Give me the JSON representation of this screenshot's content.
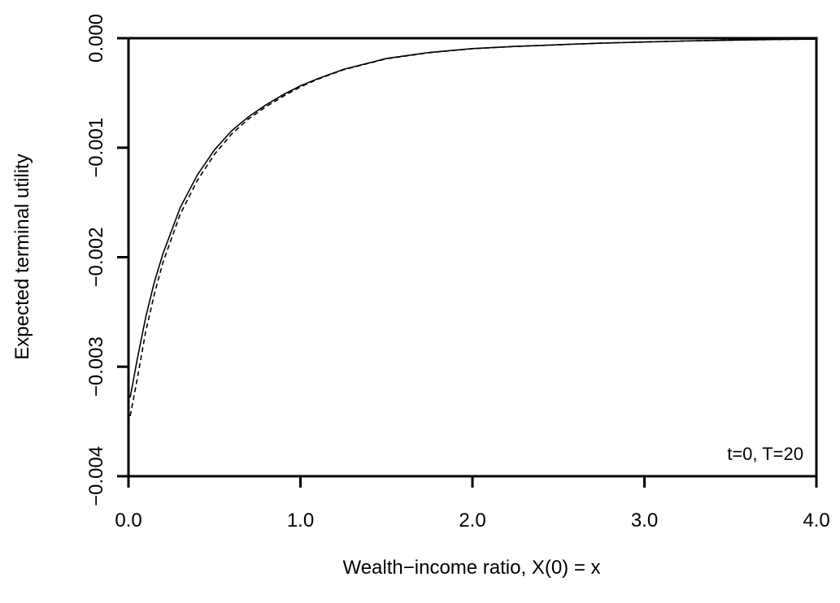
{
  "chart_data": {
    "type": "line",
    "title": "",
    "xlabel": "Wealth−income ratio, X(0) = x",
    "ylabel": "Expected terminal utility",
    "xlim": [
      0,
      4
    ],
    "ylim": [
      -0.004,
      0
    ],
    "x_ticks": [
      0,
      1,
      2,
      3,
      4
    ],
    "x_tick_labels": [
      "0.0",
      "1.0",
      "2.0",
      "3.0",
      "4.0"
    ],
    "y_ticks": [
      -0.004,
      -0.003,
      -0.002,
      -0.001,
      0
    ],
    "y_tick_labels": [
      "−0.004",
      "−0.003",
      "−0.002",
      "−0.001",
      "0.000"
    ],
    "grid": false,
    "annotation": "t=0, T=20",
    "series": [
      {
        "style": "solid",
        "x": [
          0.01,
          0.05,
          0.1,
          0.15,
          0.2,
          0.3,
          0.4,
          0.5,
          0.6,
          0.7,
          0.8,
          0.9,
          1.0,
          1.1,
          1.25,
          1.5,
          1.75,
          2.0,
          2.25,
          2.5,
          2.75,
          3.0,
          3.25,
          3.5,
          3.75,
          4.0
        ],
        "y": [
          -0.00328,
          -0.00294,
          -0.00255,
          -0.00223,
          -0.00197,
          -0.00155,
          -0.00125,
          -0.00102,
          -0.000845,
          -0.000715,
          -0.000608,
          -0.000515,
          -0.000435,
          -0.00037,
          -0.000285,
          -0.000185,
          -0.00013,
          -9.5e-05,
          -7.5e-05,
          -6e-05,
          -4.5e-05,
          -3.5e-05,
          -2.5e-05,
          -1.8e-05,
          -1.2e-05,
          -8e-06
        ]
      },
      {
        "style": "dashed",
        "x": [
          0.01,
          0.05,
          0.1,
          0.15,
          0.2,
          0.3,
          0.4,
          0.5,
          0.6,
          0.7,
          0.8,
          0.9,
          1.0,
          1.1,
          1.25,
          1.5,
          1.75,
          2.0,
          2.25,
          2.5,
          2.75,
          3.0,
          3.25,
          3.5,
          3.75,
          4.0
        ],
        "y": [
          -0.00345,
          -0.00312,
          -0.00268,
          -0.00234,
          -0.00205,
          -0.00161,
          -0.0013,
          -0.00106,
          -0.000875,
          -0.000735,
          -0.000625,
          -0.00053,
          -0.000445,
          -0.000375,
          -0.000288,
          -0.000188,
          -0.000132,
          -9.6e-05,
          -7.5e-05,
          -6e-05,
          -4.5e-05,
          -3.5e-05,
          -2.5e-05,
          -1.8e-05,
          -1.2e-05,
          -8e-06
        ]
      }
    ]
  }
}
